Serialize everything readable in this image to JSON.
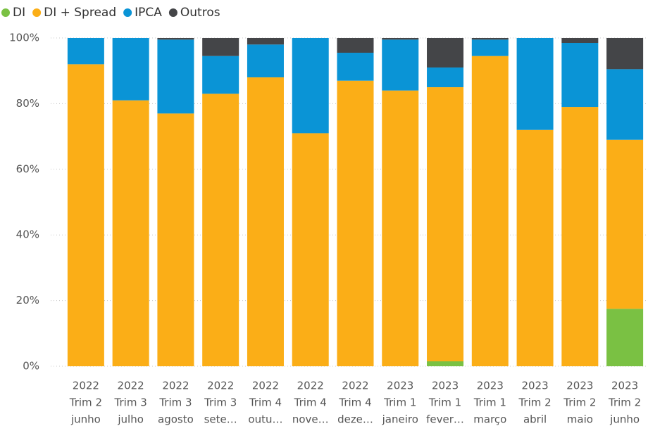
{
  "chart_data": {
    "type": "stacked_bar",
    "categories": [
      [
        "2022",
        "Trim 2",
        "junho"
      ],
      [
        "2022",
        "Trim 3",
        "julho"
      ],
      [
        "2022",
        "Trim 3",
        "agosto"
      ],
      [
        "2022",
        "Trim 3",
        "sete…"
      ],
      [
        "2022",
        "Trim 4",
        "outu…"
      ],
      [
        "2022",
        "Trim 4",
        "nove…"
      ],
      [
        "2022",
        "Trim 4",
        "deze…"
      ],
      [
        "2023",
        "Trim 1",
        "janeiro"
      ],
      [
        "2023",
        "Trim 1",
        "fever…"
      ],
      [
        "2023",
        "Trim 1",
        "março"
      ],
      [
        "2023",
        "Trim 2",
        "abril"
      ],
      [
        "2023",
        "Trim 2",
        "maio"
      ],
      [
        "2023",
        "Trim 2",
        "junho"
      ]
    ],
    "series": [
      {
        "name": "DI",
        "color": "#7ac143",
        "values": [
          0,
          0,
          0,
          0,
          0,
          0,
          0,
          0,
          1.5,
          0,
          0,
          0,
          17.5
        ]
      },
      {
        "name": "DI + Spread",
        "color": "#fbae17",
        "values": [
          92,
          81,
          77,
          83,
          88,
          71,
          87,
          84,
          83.5,
          94.5,
          72,
          79,
          51.5
        ]
      },
      {
        "name": "IPCA",
        "color": "#0a94d6",
        "values": [
          8,
          19,
          22.5,
          11.5,
          10,
          29,
          8.5,
          15.5,
          6,
          5,
          28,
          19.5,
          21.5
        ]
      },
      {
        "name": "Outros",
        "color": "#444548",
        "values": [
          0,
          0,
          0.5,
          5.5,
          2,
          0,
          4.5,
          0.5,
          9,
          0.5,
          0,
          1.5,
          9.5
        ]
      }
    ],
    "ylim": [
      0,
      100
    ],
    "yticks": [
      {
        "value": 0,
        "label": "0%"
      },
      {
        "value": 20,
        "label": "20%"
      },
      {
        "value": 40,
        "label": "40%"
      },
      {
        "value": 60,
        "label": "60%"
      },
      {
        "value": 80,
        "label": "80%"
      },
      {
        "value": 100,
        "label": "100%"
      }
    ],
    "grid": true,
    "legend": "top-left"
  }
}
